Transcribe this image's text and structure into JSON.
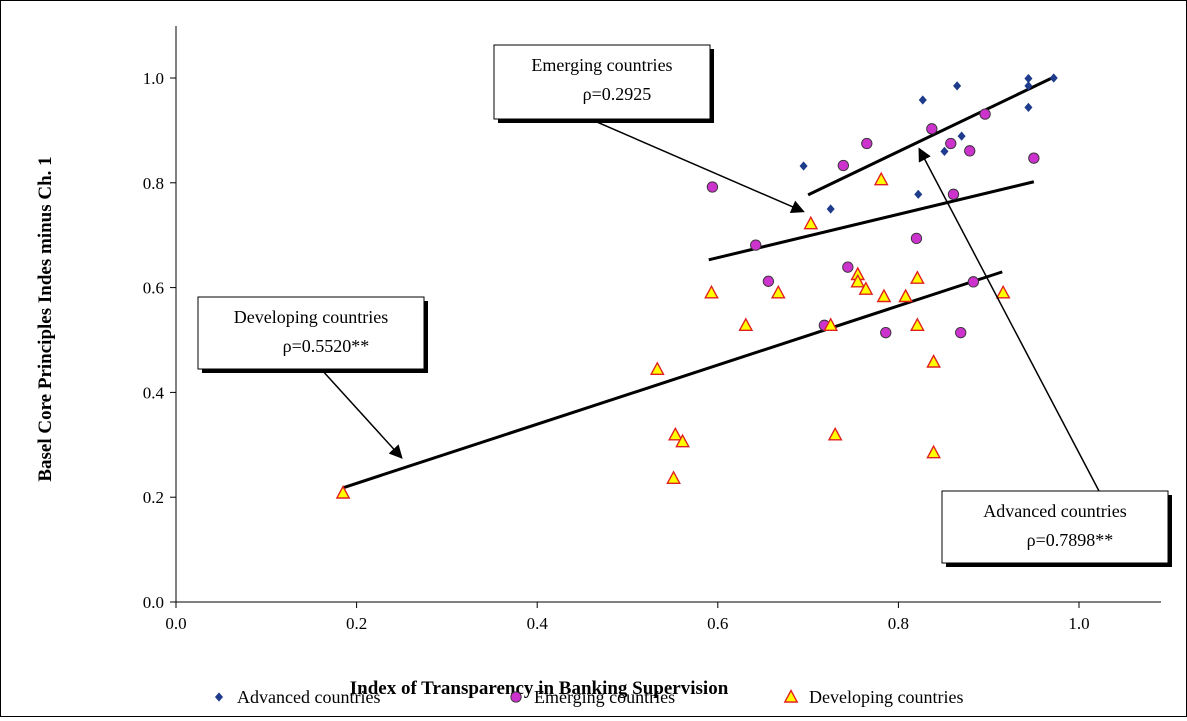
{
  "chart_data": {
    "type": "scatter",
    "xlabel": "Index of Transparency in Banking Supervision",
    "ylabel": "Basel Core Principles Indes minus Ch. 1",
    "xlim": [
      0.0,
      1.1
    ],
    "ylim": [
      0.0,
      1.1
    ],
    "xticks": [
      0.0,
      0.2,
      0.4,
      0.6,
      0.8,
      1.0
    ],
    "yticks": [
      0.0,
      0.2,
      0.4,
      0.6,
      0.8,
      1.0
    ],
    "grid": false,
    "legend_position": "bottom",
    "series": [
      {
        "name": "Advanced countries",
        "marker": "diamond",
        "color": "#1F3C8C",
        "points": [
          [
            0.695,
            0.832
          ],
          [
            0.725,
            0.75
          ],
          [
            0.822,
            0.778
          ],
          [
            0.827,
            0.958
          ],
          [
            0.865,
            0.985
          ],
          [
            0.851,
            0.86
          ],
          [
            0.87,
            0.889
          ],
          [
            0.944,
            0.999
          ],
          [
            0.944,
            0.985
          ],
          [
            0.944,
            0.944
          ],
          [
            0.972,
            1.0
          ]
        ]
      },
      {
        "name": "Emerging countries",
        "marker": "circle",
        "color": "#CC33CC",
        "points": [
          [
            0.594,
            0.792
          ],
          [
            0.642,
            0.681
          ],
          [
            0.656,
            0.612
          ],
          [
            0.739,
            0.833
          ],
          [
            0.744,
            0.639
          ],
          [
            0.718,
            0.528
          ],
          [
            0.765,
            0.875
          ],
          [
            0.786,
            0.514
          ],
          [
            0.82,
            0.694
          ],
          [
            0.837,
            0.903
          ],
          [
            0.858,
            0.875
          ],
          [
            0.861,
            0.778
          ],
          [
            0.869,
            0.514
          ],
          [
            0.879,
            0.861
          ],
          [
            0.883,
            0.611
          ],
          [
            0.896,
            0.931
          ],
          [
            0.95,
            0.847
          ]
        ]
      },
      {
        "name": "Developing countries",
        "marker": "triangle",
        "color": "#FFFF00",
        "edge_color": "#E02020",
        "points": [
          [
            0.185,
            0.208
          ],
          [
            0.533,
            0.444
          ],
          [
            0.551,
            0.236
          ],
          [
            0.553,
            0.319
          ],
          [
            0.561,
            0.306
          ],
          [
            0.593,
            0.59
          ],
          [
            0.631,
            0.528
          ],
          [
            0.667,
            0.59
          ],
          [
            0.703,
            0.722
          ],
          [
            0.725,
            0.528
          ],
          [
            0.73,
            0.319
          ],
          [
            0.755,
            0.625
          ],
          [
            0.755,
            0.611
          ],
          [
            0.764,
            0.597
          ],
          [
            0.781,
            0.806
          ],
          [
            0.784,
            0.583
          ],
          [
            0.808,
            0.583
          ],
          [
            0.821,
            0.528
          ],
          [
            0.821,
            0.618
          ],
          [
            0.839,
            0.458
          ],
          [
            0.839,
            0.285
          ],
          [
            0.916,
            0.59
          ]
        ]
      }
    ],
    "trendlines": [
      {
        "series": "Advanced countries",
        "x": [
          0.7,
          0.97
        ],
        "y": [
          0.777,
          1.0
        ]
      },
      {
        "series": "Emerging countries",
        "x": [
          0.59,
          0.95
        ],
        "y": [
          0.653,
          0.802
        ]
      },
      {
        "series": "Developing countries",
        "x": [
          0.185,
          0.915
        ],
        "y": [
          0.218,
          0.63
        ]
      }
    ],
    "annotations": [
      {
        "id": "emerging",
        "line1": "Emerging countries",
        "line2": "ρ=0.2925",
        "arrow_to": [
          0.695,
          0.745
        ]
      },
      {
        "id": "developing",
        "line1": "Developing countries",
        "line2": "ρ=0.5520**",
        "arrow_to": [
          0.25,
          0.275
        ]
      },
      {
        "id": "advanced",
        "line1": "Advanced countries",
        "line2": "ρ=0.7898**",
        "arrow_to": [
          0.823,
          0.865
        ]
      }
    ]
  }
}
